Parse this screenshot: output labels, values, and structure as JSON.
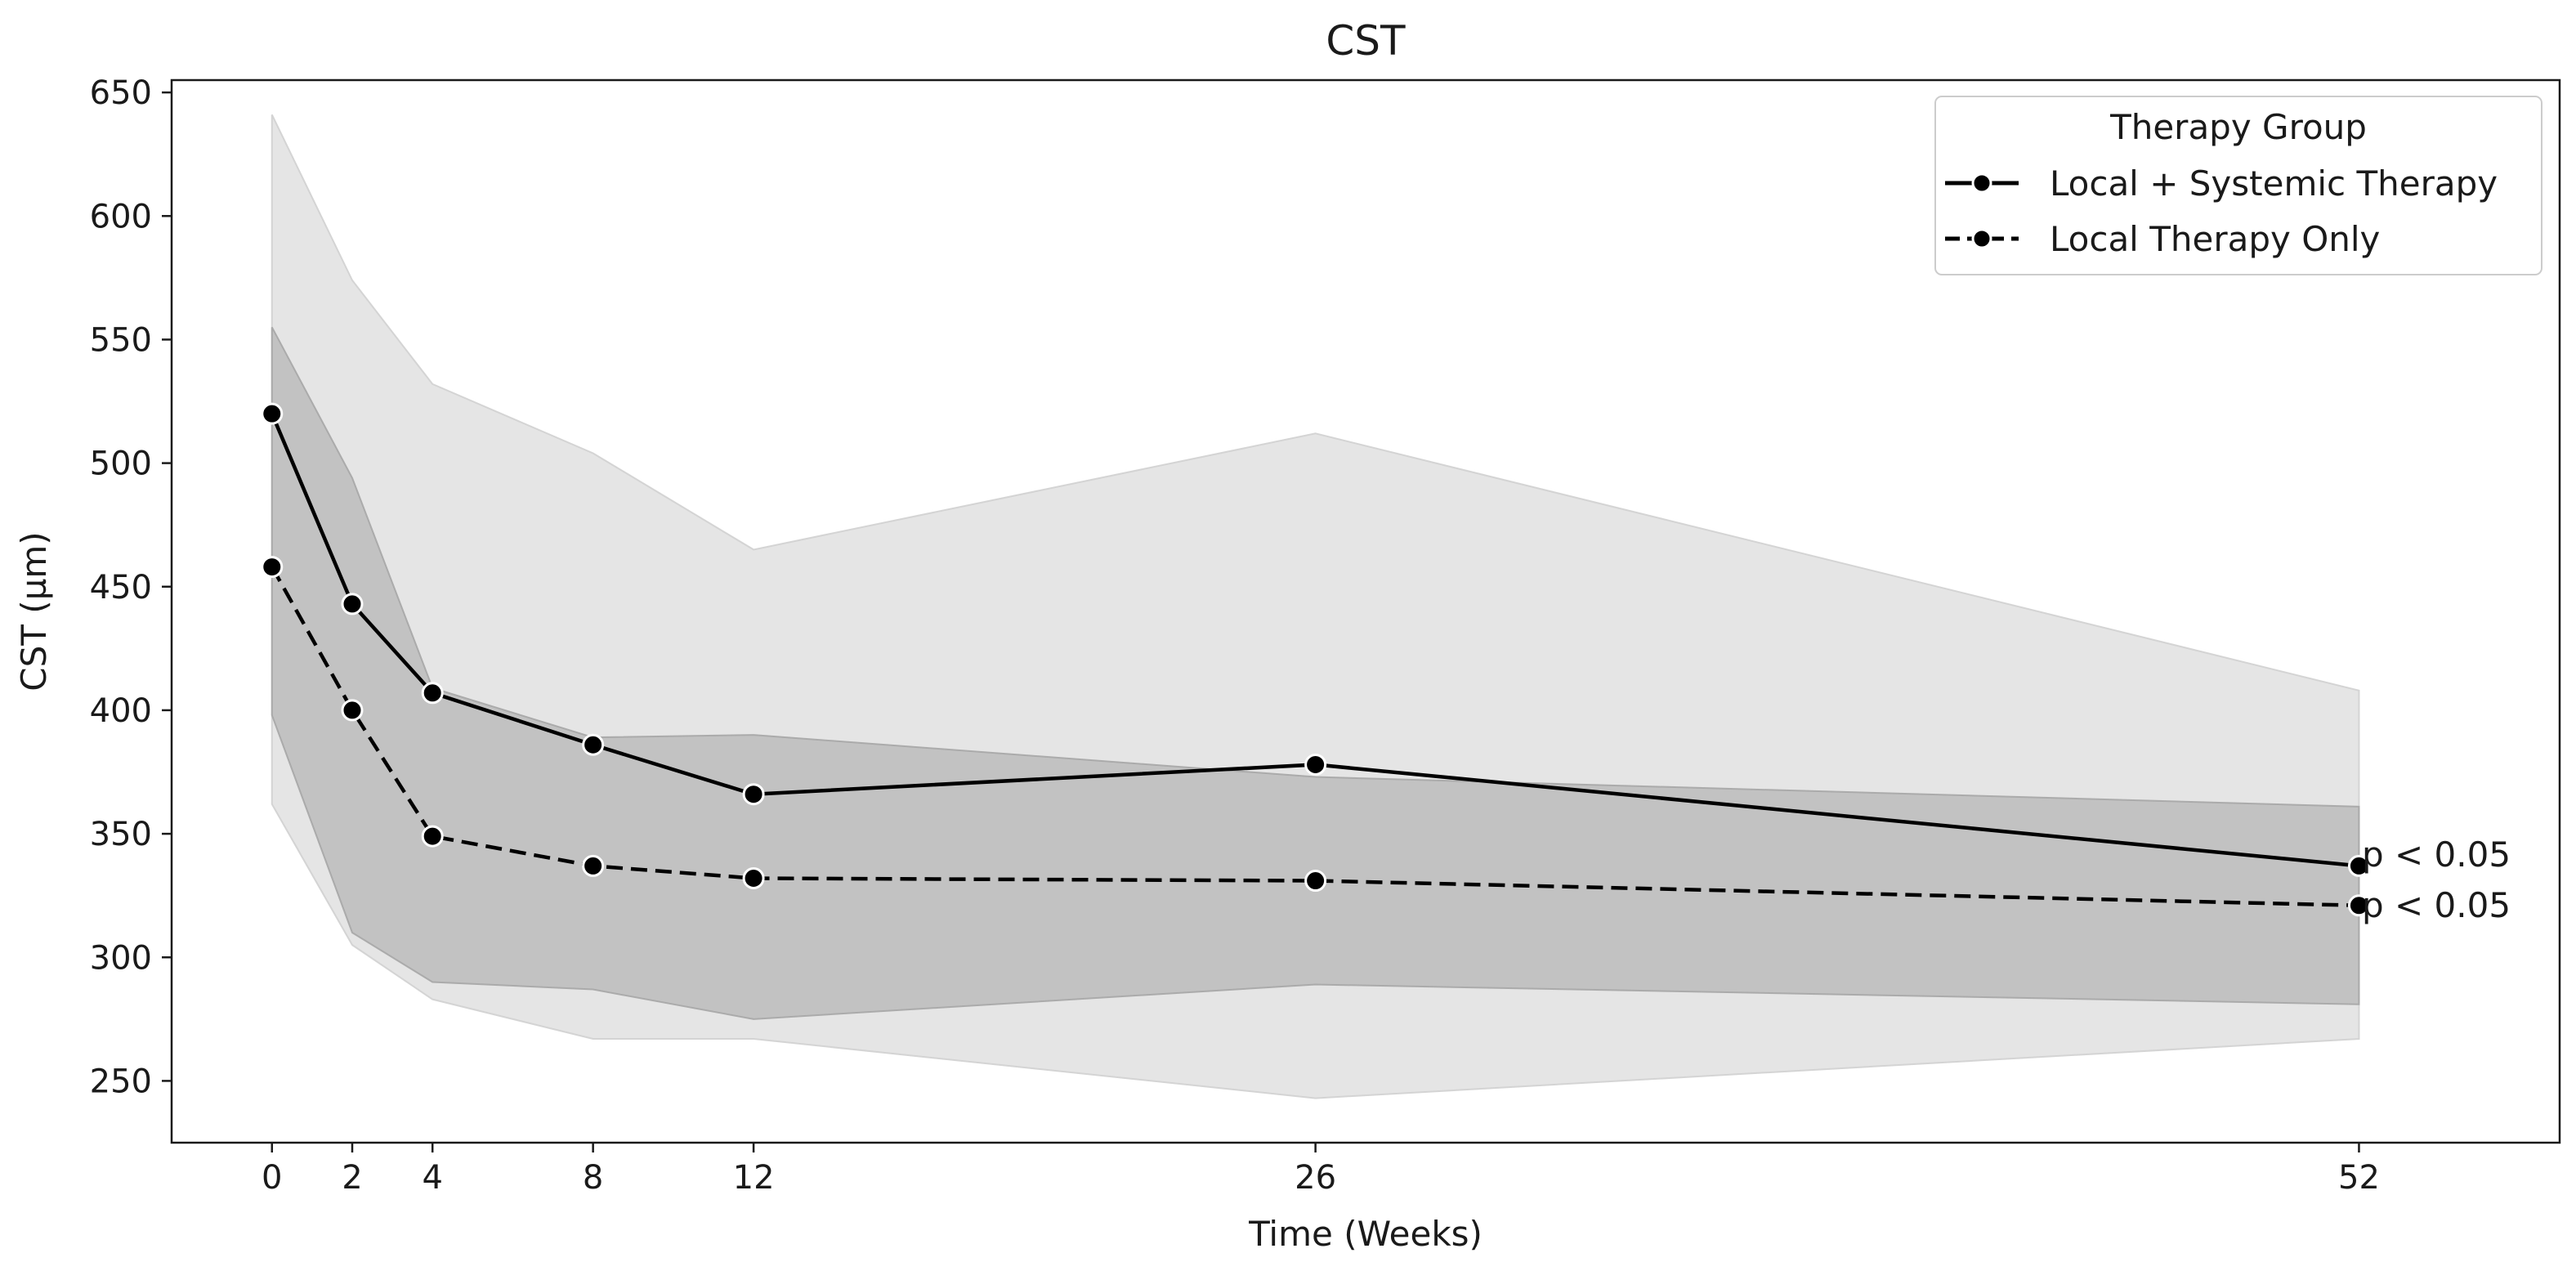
{
  "chart_data": {
    "type": "line",
    "title": "CST",
    "xlabel": "Time (Weeks)",
    "ylabel": "CST (µm)",
    "x": [
      0,
      2,
      4,
      8,
      12,
      26,
      52
    ],
    "xlim": [
      -2.5,
      57
    ],
    "ylim": [
      225,
      655
    ],
    "xticks": [
      "0",
      "2",
      "4",
      "8",
      "12",
      "26",
      "52"
    ],
    "yticks": [
      "250",
      "300",
      "350",
      "400",
      "450",
      "500",
      "550",
      "600",
      "650"
    ],
    "legend": {
      "title": "Therapy Group",
      "placement": "top-right"
    },
    "series": [
      {
        "name": "Local + Systemic Therapy",
        "linestyle": "solid",
        "values": [
          520,
          443,
          407,
          386,
          366,
          378,
          337
        ],
        "band_upper": [
          641,
          574,
          532,
          504,
          465,
          512,
          408
        ],
        "band_lower": [
          362,
          305,
          283,
          267,
          267,
          243,
          267
        ],
        "band_color": "#d0d0d0"
      },
      {
        "name": "Local Therapy Only",
        "linestyle": "dashed",
        "values": [
          458,
          400,
          349,
          337,
          332,
          331,
          321
        ],
        "band_upper": [
          555,
          494,
          409,
          389,
          390,
          373,
          361
        ],
        "band_lower": [
          398,
          310,
          290,
          287,
          275,
          289,
          281
        ],
        "band_color": "#a6a6a6"
      }
    ],
    "annotations": [
      {
        "series": "Local + Systemic Therapy",
        "text": "p < 0.05"
      },
      {
        "series": "Local Therapy Only",
        "text": "p < 0.05"
      }
    ]
  }
}
